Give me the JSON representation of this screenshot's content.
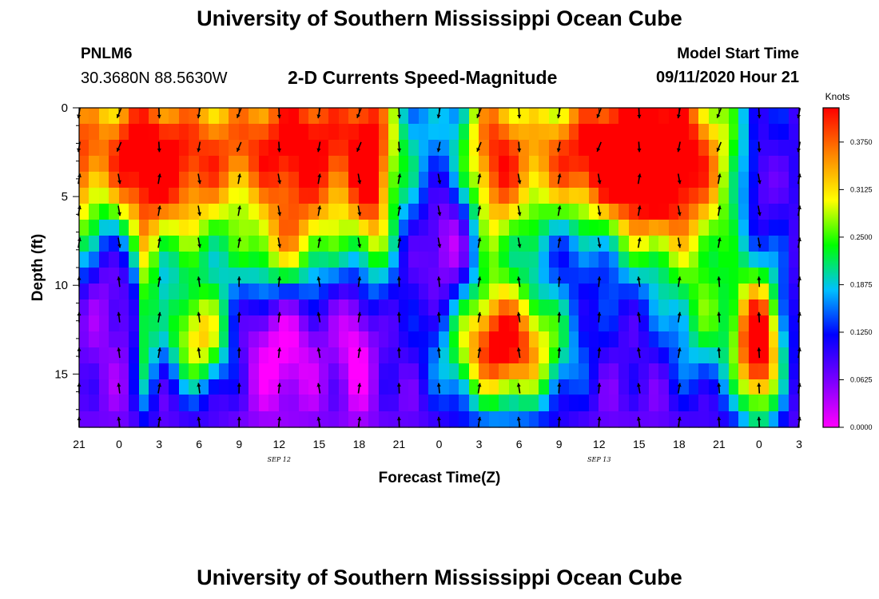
{
  "header": {
    "title": "University of Southern Mississippi Ocean Cube",
    "station_id": "PNLM6",
    "station_coords": "30.3680N 88.5630W",
    "plot_title": "2-D Currents Speed-Magnitude",
    "model_start_label": "Model Start Time",
    "model_start_value": "09/11/2020 Hour 21"
  },
  "footer": {
    "title": "University of Southern Mississippi Ocean Cube"
  },
  "chart_data": {
    "type": "heatmap",
    "title": "2-D Currents Speed-Magnitude",
    "xlabel": "Forecast Time(Z)",
    "ylabel": "Depth (ft)",
    "x_ticks": [
      "21",
      "0",
      "3",
      "6",
      "9",
      "12",
      "15",
      "18",
      "21",
      "0",
      "3",
      "6",
      "9",
      "12",
      "15",
      "18",
      "21",
      "0",
      "3"
    ],
    "x_range_hours": [
      0,
      54
    ],
    "date_labels": [
      {
        "text": "SEP 12",
        "hour": 15
      },
      {
        "text": "SEP 13",
        "hour": 39
      }
    ],
    "y_ticks": [
      0,
      5,
      10,
      15
    ],
    "ylim_ft": [
      0,
      18
    ],
    "y_inverted": true,
    "colorbar": {
      "title": "Knots",
      "ticks": [
        "0.0000",
        "0.0625",
        "0.1250",
        "0.1875",
        "0.2500",
        "0.3125",
        "0.3750"
      ],
      "range": [
        0,
        0.42
      ],
      "colors": [
        "#ff00ff",
        "#8000ff",
        "#0000ff",
        "#00c0ff",
        "#00ff00",
        "#ffff00",
        "#ff8000",
        "#ff0000"
      ]
    },
    "arrow_hours": [
      0,
      3,
      6,
      9,
      12,
      15,
      18,
      21,
      24,
      27,
      30,
      33,
      36,
      39,
      42,
      45,
      48,
      51,
      54
    ],
    "arrow_depths_ft": [
      0.3,
      2.2,
      4.0,
      5.8,
      7.6,
      9.8,
      11.8,
      13.8,
      15.8,
      17.7
    ],
    "colors_hint": {
      "high": "#ff3000",
      "low": "#c000ff"
    }
  }
}
